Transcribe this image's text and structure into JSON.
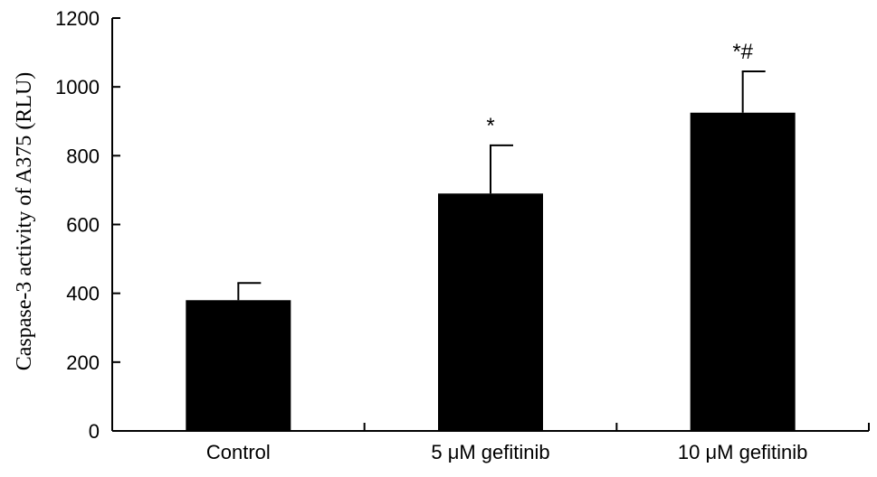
{
  "chart_data": {
    "type": "bar",
    "title": "",
    "xlabel": "",
    "ylabel": "Caspase-3 activity of A375 (RLU)",
    "ylim": [
      0,
      1200
    ],
    "yticks": [
      "0",
      "200",
      "400",
      "600",
      "800",
      "1000",
      "1200"
    ],
    "categories": [
      "Control",
      "5 μM gefitinib",
      "10 μM gefitinib"
    ],
    "values": [
      380,
      690,
      925
    ],
    "error": [
      50,
      140,
      120
    ],
    "annotations": [
      "",
      "*",
      "*#"
    ],
    "bar_color": "#000000",
    "grid": false,
    "legend": "none"
  }
}
